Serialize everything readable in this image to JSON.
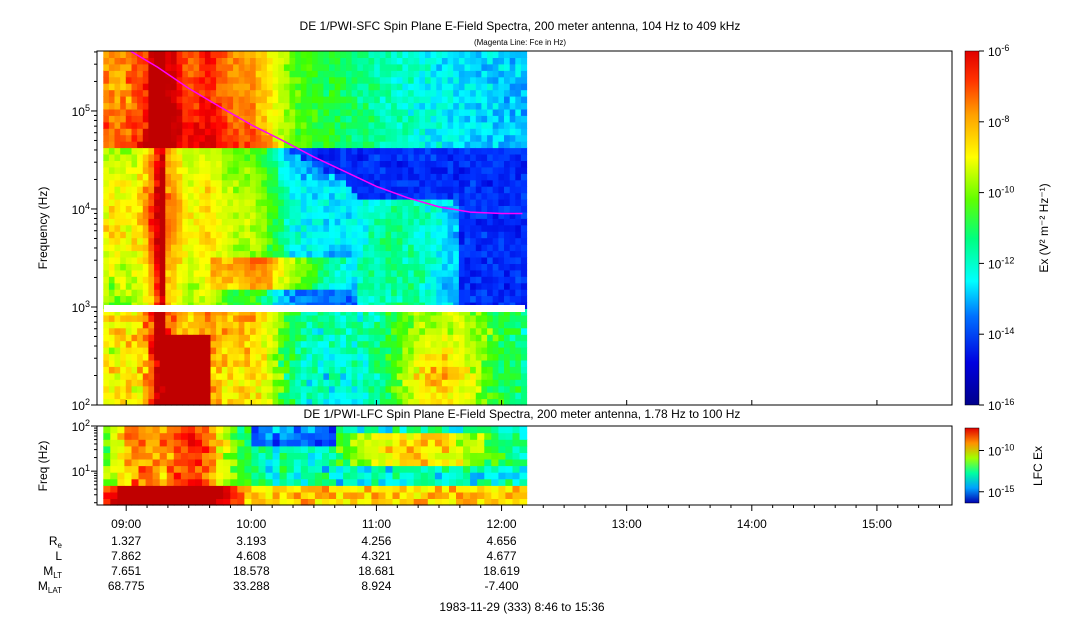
{
  "header": {
    "title": "DE 1/PWI-SFC  Spin Plane E-Field Spectra, 200 meter antenna, 104 Hz to 409 kHz",
    "subtitle": "(Magenta Line: Fce in Hz)"
  },
  "chart_data": [
    {
      "type": "heatmap",
      "name": "sfc-spectrogram",
      "title": "DE 1/PWI-SFC  Spin Plane E-Field Spectra, 200 meter antenna, 104 Hz to 409 kHz",
      "subtitle": "(Magenta Line: Fce in Hz)",
      "ylabel": "Frequency (Hz)",
      "yscale": "log",
      "ylim": [
        100,
        409000
      ],
      "y_ticks": [
        {
          "base": "10",
          "exp": "2",
          "value": 100
        },
        {
          "base": "10",
          "exp": "3",
          "value": 1000
        },
        {
          "base": "10",
          "exp": "4",
          "value": 10000
        },
        {
          "base": "10",
          "exp": "5",
          "value": 100000
        }
      ],
      "xlim": [
        "08:46",
        "15:36"
      ],
      "data_extent": [
        "08:46",
        "12:12"
      ],
      "colorbar": {
        "label": "Ex (V² m⁻² Hz⁻¹)",
        "scale": "log",
        "range": [
          1e-16,
          1e-06
        ],
        "ticks": [
          {
            "base": "10",
            "exp": "-6",
            "value": 1e-06
          },
          {
            "base": "10",
            "exp": "-8",
            "value": 1e-08
          },
          {
            "base": "10",
            "exp": "-10",
            "value": 1e-10
          },
          {
            "base": "10",
            "exp": "-12",
            "value": 1e-12
          },
          {
            "base": "10",
            "exp": "-14",
            "value": 1e-14
          },
          {
            "base": "10",
            "exp": "-16",
            "value": 1e-16
          }
        ]
      },
      "fce_line": {
        "color": "#ff00ff",
        "points": [
          {
            "t": "09:02",
            "f": 409000
          },
          {
            "t": "09:15",
            "f": 280000
          },
          {
            "t": "09:30",
            "f": 170000
          },
          {
            "t": "09:45",
            "f": 110000
          },
          {
            "t": "10:00",
            "f": 72000
          },
          {
            "t": "10:15",
            "f": 50000
          },
          {
            "t": "10:30",
            "f": 34000
          },
          {
            "t": "10:45",
            "f": 24000
          },
          {
            "t": "11:00",
            "f": 17000
          },
          {
            "t": "11:15",
            "f": 13000
          },
          {
            "t": "11:30",
            "f": 10500
          },
          {
            "t": "11:45",
            "f": 9300
          },
          {
            "t": "12:00",
            "f": 9000
          },
          {
            "t": "12:10",
            "f": 9000
          }
        ]
      }
    },
    {
      "type": "heatmap",
      "name": "lfc-spectrogram",
      "title": "DE 1/PWI-LFC  Spin Plane E-Field Spectra, 200 meter antenna, 1.78 Hz to 100 Hz",
      "ylabel": "Freq (Hz)",
      "yscale": "log",
      "ylim": [
        1.78,
        100
      ],
      "y_ticks": [
        {
          "base": "10",
          "exp": "1",
          "value": 10
        },
        {
          "base": "10",
          "exp": "2",
          "value": 100
        }
      ],
      "xlim": [
        "08:46",
        "15:36"
      ],
      "data_extent": [
        "08:46",
        "12:12"
      ],
      "colorbar": {
        "label": "LFC Ex",
        "scale": "log",
        "ticks": [
          {
            "base": "10",
            "exp": "-10",
            "value": 1e-10
          },
          {
            "base": "10",
            "exp": "-15",
            "value": 1e-15
          }
        ]
      }
    }
  ],
  "x_axis": {
    "ticks": [
      "09:00",
      "10:00",
      "11:00",
      "12:00",
      "13:00",
      "14:00",
      "15:00"
    ],
    "footer": "1983-11-29 (333) 8:46 to 15:36"
  },
  "ephemeris": {
    "rows": [
      {
        "label": "R",
        "sub": "e",
        "values": [
          "1.327",
          "3.193",
          "4.256",
          "4.656"
        ]
      },
      {
        "label": "L",
        "sub": "",
        "values": [
          "7.862",
          "4.608",
          "4.321",
          "4.677"
        ]
      },
      {
        "label": "M",
        "sub": "LT",
        "values": [
          "7.651",
          "18.578",
          "18.681",
          "18.619"
        ]
      },
      {
        "label": "M",
        "sub": "LAT",
        "values": [
          "68.775",
          "33.288",
          "8.924",
          "-7.400"
        ]
      }
    ]
  },
  "colors": {
    "magenta_line": "#ff00ff",
    "colormap": [
      "#00008b",
      "#0000d8",
      "#0030ff",
      "#0080ff",
      "#00ffff",
      "#00ff80",
      "#40ff00",
      "#c0ff00",
      "#ffff00",
      "#ffb000",
      "#ff6000",
      "#ff0000",
      "#c00000"
    ]
  }
}
